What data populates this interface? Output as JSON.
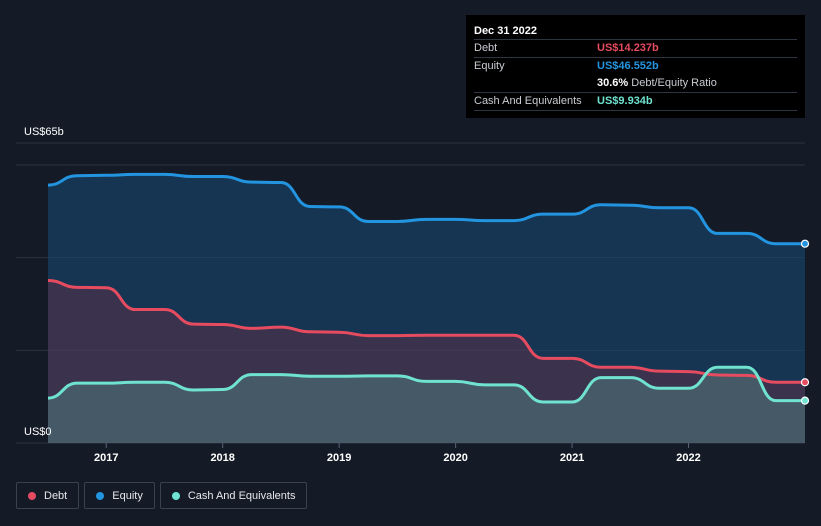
{
  "tooltip": {
    "date": "Dec 31 2022",
    "debt_label": "Debt",
    "debt_value": "US$14.237b",
    "equity_label": "Equity",
    "equity_value": "US$46.552b",
    "ratio_value": "30.6%",
    "ratio_suffix": "Debt/Equity Ratio",
    "cash_label": "Cash And Equivalents",
    "cash_value": "US$9.934b"
  },
  "colors": {
    "background": "#151b26",
    "debt": "#e64b5f",
    "equity": "#2394df",
    "cash": "#6fe3d0"
  },
  "legend": [
    {
      "label": "Debt",
      "color": "#e64b5f"
    },
    {
      "label": "Equity",
      "color": "#2394df"
    },
    {
      "label": "Cash And Equivalents",
      "color": "#6fe3d0"
    }
  ],
  "chart_data": {
    "type": "area",
    "ylabel_top": "US$65b",
    "ylabel_bottom": "US$0",
    "ylim": [
      0,
      65
    ],
    "xlim": [
      2016.5,
      2023.0
    ],
    "x_ticks": [
      2017,
      2018,
      2019,
      2020,
      2021,
      2022
    ],
    "grid": true,
    "highlight_x": 2022.75,
    "series": [
      {
        "name": "Equity",
        "color": "#2394df",
        "points": [
          [
            2016.5,
            60.3
          ],
          [
            2016.75,
            62.5
          ],
          [
            2017.0,
            62.6
          ],
          [
            2017.25,
            62.8
          ],
          [
            2017.5,
            62.8
          ],
          [
            2017.75,
            62.3
          ],
          [
            2018.0,
            62.3
          ],
          [
            2018.25,
            61.0
          ],
          [
            2018.5,
            60.9
          ],
          [
            2018.75,
            55.3
          ],
          [
            2019.0,
            55.2
          ],
          [
            2019.25,
            51.8
          ],
          [
            2019.5,
            51.8
          ],
          [
            2019.75,
            52.3
          ],
          [
            2020.0,
            52.3
          ],
          [
            2020.25,
            52.0
          ],
          [
            2020.5,
            52.0
          ],
          [
            2020.75,
            53.5
          ],
          [
            2021.0,
            53.5
          ],
          [
            2021.25,
            55.7
          ],
          [
            2021.5,
            55.6
          ],
          [
            2021.75,
            55.0
          ],
          [
            2022.0,
            55.0
          ],
          [
            2022.25,
            49.0
          ],
          [
            2022.5,
            49.0
          ],
          [
            2022.75,
            46.6
          ],
          [
            2023.0,
            46.6
          ]
        ]
      },
      {
        "name": "Debt",
        "color": "#e64b5f",
        "points": [
          [
            2016.5,
            38.0
          ],
          [
            2016.75,
            36.4
          ],
          [
            2017.0,
            36.3
          ],
          [
            2017.25,
            31.2
          ],
          [
            2017.5,
            31.2
          ],
          [
            2017.75,
            27.8
          ],
          [
            2018.0,
            27.7
          ],
          [
            2018.25,
            26.8
          ],
          [
            2018.5,
            27.1
          ],
          [
            2018.75,
            26.0
          ],
          [
            2019.0,
            25.9
          ],
          [
            2019.25,
            25.1
          ],
          [
            2019.5,
            25.1
          ],
          [
            2019.75,
            25.2
          ],
          [
            2020.0,
            25.2
          ],
          [
            2020.25,
            25.2
          ],
          [
            2020.5,
            25.2
          ],
          [
            2020.75,
            19.8
          ],
          [
            2021.0,
            19.8
          ],
          [
            2021.25,
            17.7
          ],
          [
            2021.5,
            17.7
          ],
          [
            2021.75,
            16.8
          ],
          [
            2022.0,
            16.7
          ],
          [
            2022.25,
            15.9
          ],
          [
            2022.5,
            15.8
          ],
          [
            2022.75,
            14.2
          ],
          [
            2023.0,
            14.2
          ]
        ]
      },
      {
        "name": "Cash And Equivalents",
        "color": "#6fe3d0",
        "points": [
          [
            2016.5,
            10.5
          ],
          [
            2016.75,
            14.0
          ],
          [
            2017.0,
            14.0
          ],
          [
            2017.25,
            14.2
          ],
          [
            2017.5,
            14.2
          ],
          [
            2017.75,
            12.4
          ],
          [
            2018.0,
            12.5
          ],
          [
            2018.25,
            16.0
          ],
          [
            2018.5,
            16.0
          ],
          [
            2018.75,
            15.6
          ],
          [
            2019.0,
            15.6
          ],
          [
            2019.25,
            15.7
          ],
          [
            2019.5,
            15.7
          ],
          [
            2019.75,
            14.4
          ],
          [
            2020.0,
            14.4
          ],
          [
            2020.25,
            13.6
          ],
          [
            2020.5,
            13.6
          ],
          [
            2020.75,
            9.6
          ],
          [
            2021.0,
            9.6
          ],
          [
            2021.25,
            15.3
          ],
          [
            2021.5,
            15.3
          ],
          [
            2021.75,
            12.8
          ],
          [
            2022.0,
            12.8
          ],
          [
            2022.25,
            17.7
          ],
          [
            2022.5,
            17.7
          ],
          [
            2022.75,
            9.9
          ],
          [
            2023.0,
            9.9
          ]
        ]
      }
    ]
  }
}
